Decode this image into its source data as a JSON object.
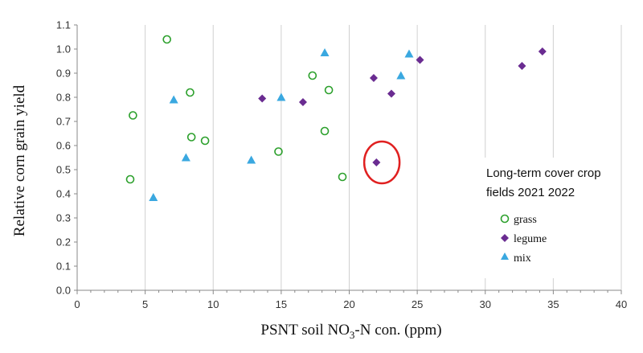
{
  "chart_data": {
    "type": "scatter",
    "title": "",
    "xlabel_main": "PSNT soil NO",
    "xlabel_sub": "3",
    "xlabel_tail": "-N con. (ppm)",
    "ylabel": "Relative corn grain yield",
    "xlim": [
      0,
      40
    ],
    "ylim": [
      0.0,
      1.1
    ],
    "xticks": [
      "0",
      "5",
      "10",
      "15",
      "20",
      "25",
      "30",
      "35",
      "40"
    ],
    "yticks": [
      "0.0",
      "0.1",
      "0.2",
      "0.3",
      "0.4",
      "0.5",
      "0.6",
      "0.7",
      "0.8",
      "0.9",
      "1.0",
      "1.1"
    ],
    "grid": "vertical",
    "legend_position": "right",
    "annotation_line1": "Long-term cover crop",
    "annotation_line2": "fields 2021 2022",
    "colors": {
      "grass": "#2ca02c",
      "legume": "#6a2c91",
      "mix": "#3aa8e0",
      "highlight": "#e02020",
      "grid": "#d0d0d0",
      "axis": "#888888"
    },
    "series": [
      {
        "name": "grass",
        "marker": "circle-open",
        "points": [
          [
            3.9,
            0.46
          ],
          [
            4.1,
            0.725
          ],
          [
            6.6,
            1.04
          ],
          [
            8.3,
            0.82
          ],
          [
            8.4,
            0.635
          ],
          [
            9.4,
            0.62
          ],
          [
            14.8,
            0.575
          ],
          [
            17.3,
            0.89
          ],
          [
            18.2,
            0.66
          ],
          [
            18.5,
            0.83
          ],
          [
            19.5,
            0.47
          ]
        ]
      },
      {
        "name": "legume",
        "marker": "diamond",
        "points": [
          [
            13.6,
            0.795
          ],
          [
            16.6,
            0.78
          ],
          [
            21.8,
            0.88
          ],
          [
            22.0,
            0.53
          ],
          [
            23.1,
            0.815
          ],
          [
            25.2,
            0.955
          ],
          [
            32.7,
            0.93
          ],
          [
            34.2,
            0.99
          ]
        ]
      },
      {
        "name": "mix",
        "marker": "triangle",
        "points": [
          [
            5.6,
            0.385
          ],
          [
            7.1,
            0.79
          ],
          [
            8.0,
            0.55
          ],
          [
            12.8,
            0.54
          ],
          [
            15.0,
            0.8
          ],
          [
            18.2,
            0.985
          ],
          [
            23.8,
            0.89
          ],
          [
            24.4,
            0.98
          ]
        ]
      }
    ],
    "highlight": {
      "x": 22.4,
      "y": 0.53
    }
  }
}
